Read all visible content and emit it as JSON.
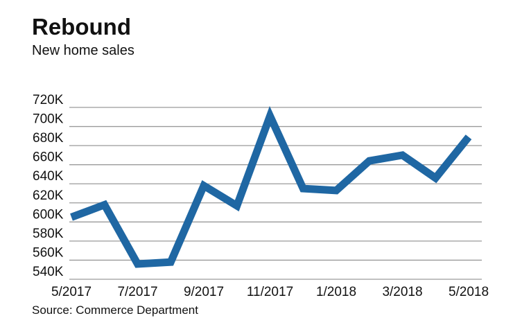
{
  "chart_data": {
    "type": "line",
    "title": "Rebound",
    "subtitle": "New home sales",
    "source": "Source: Commerce Department",
    "x": [
      "5/2017",
      "6/2017",
      "7/2017",
      "8/2017",
      "9/2017",
      "10/2017",
      "11/2017",
      "12/2017",
      "1/2018",
      "2/2018",
      "3/2018",
      "4/2018",
      "5/2018"
    ],
    "x_tick_labels": [
      "5/2017",
      "7/2017",
      "9/2017",
      "11/2017",
      "1/2018",
      "3/2018",
      "5/2018"
    ],
    "values": [
      605,
      618,
      556,
      558,
      638,
      617,
      711,
      635,
      633,
      664,
      670,
      646,
      689
    ],
    "y_unit": "K",
    "y_tick_labels": [
      "720K",
      "700K",
      "680K",
      "660K",
      "640K",
      "620K",
      "600K",
      "580K",
      "560K",
      "540K"
    ],
    "ylim": [
      540,
      720
    ],
    "grid": true,
    "line_color": "#1f67a3"
  }
}
